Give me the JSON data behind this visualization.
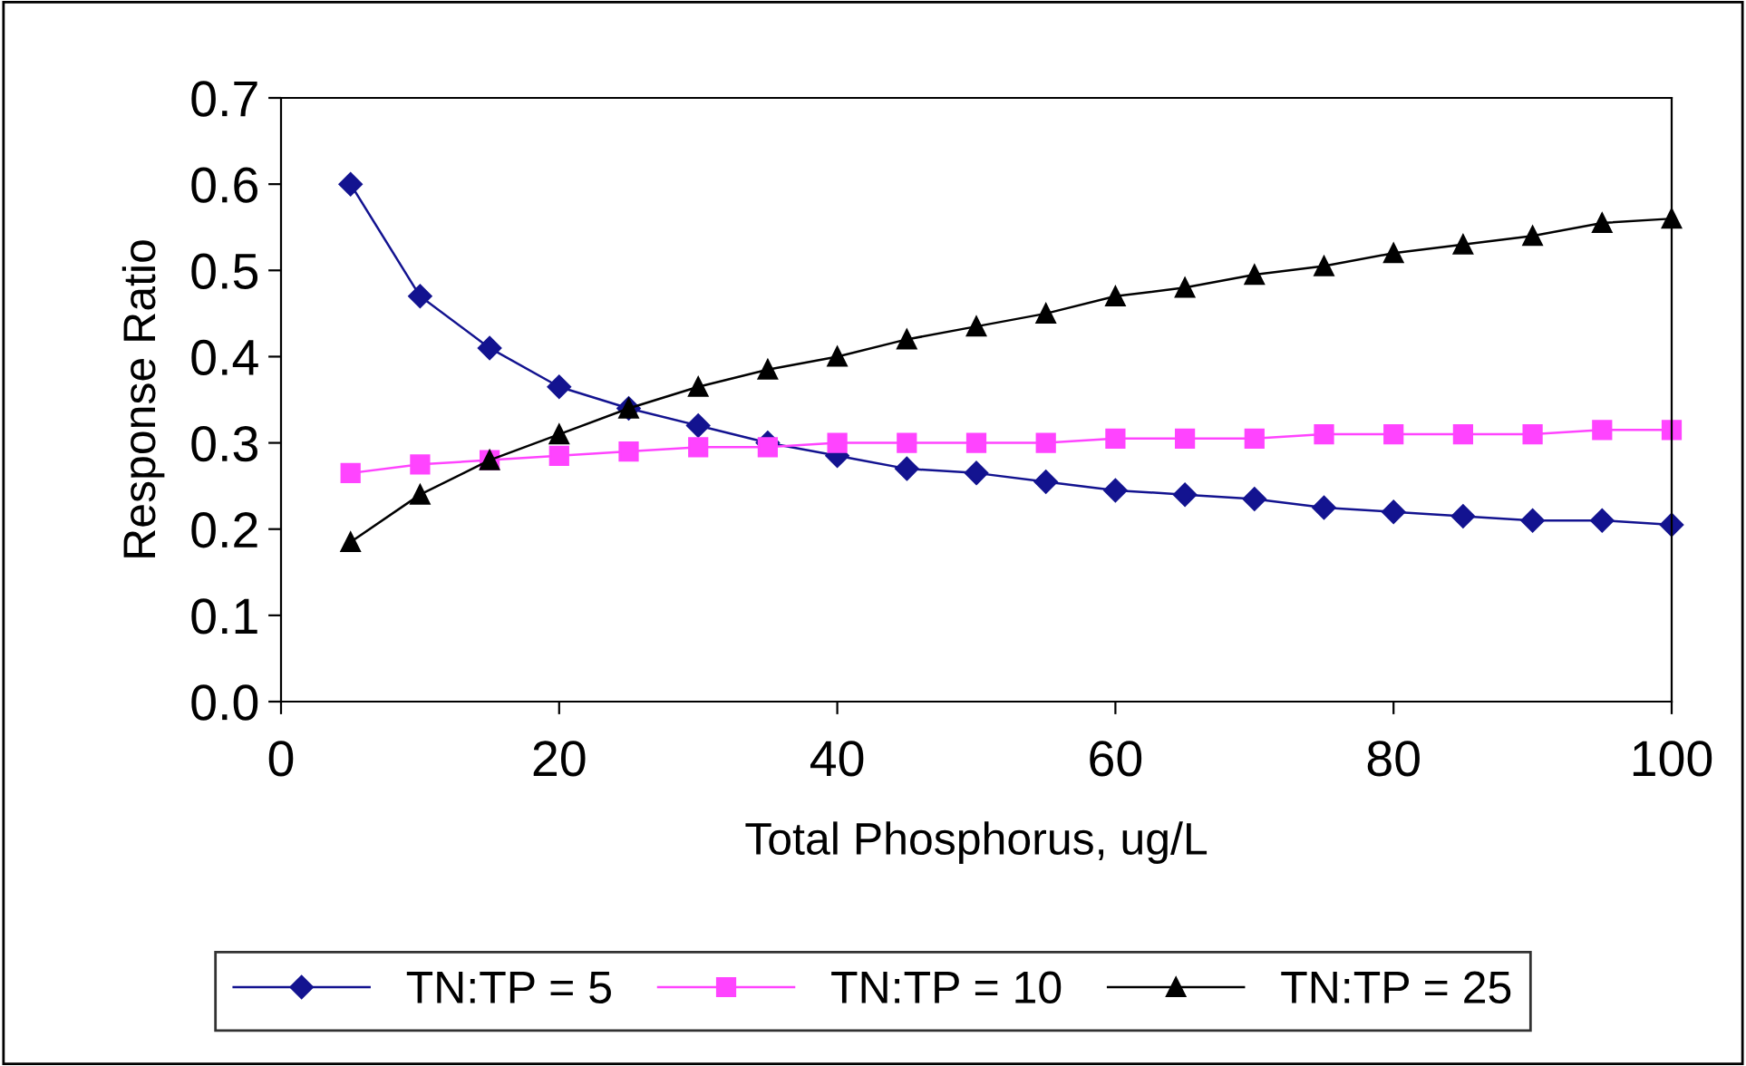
{
  "chart_data": {
    "type": "line",
    "xlabel": "Total Phosphorus, ug/L",
    "ylabel": "Response Ratio",
    "x": [
      5,
      10,
      15,
      20,
      25,
      30,
      35,
      40,
      45,
      50,
      55,
      60,
      65,
      70,
      75,
      80,
      85,
      90,
      95,
      100
    ],
    "series": [
      {
        "name": "TN:TP = 5",
        "color": "#131390",
        "marker": "diamond",
        "values": [
          0.6,
          0.47,
          0.41,
          0.365,
          0.34,
          0.32,
          0.3,
          0.285,
          0.27,
          0.265,
          0.255,
          0.245,
          0.24,
          0.235,
          0.225,
          0.22,
          0.215,
          0.21,
          0.21,
          0.205
        ]
      },
      {
        "name": "TN:TP = 10",
        "color": "#ff44ff",
        "marker": "square",
        "values": [
          0.265,
          0.275,
          0.28,
          0.285,
          0.29,
          0.295,
          0.295,
          0.3,
          0.3,
          0.3,
          0.3,
          0.305,
          0.305,
          0.305,
          0.31,
          0.31,
          0.31,
          0.31,
          0.315,
          0.315
        ]
      },
      {
        "name": "TN:TP = 25",
        "color": "#000000",
        "marker": "triangle",
        "values": [
          0.185,
          0.24,
          0.28,
          0.31,
          0.34,
          0.365,
          0.385,
          0.4,
          0.42,
          0.435,
          0.45,
          0.47,
          0.48,
          0.495,
          0.505,
          0.52,
          0.53,
          0.54,
          0.555,
          0.56
        ]
      }
    ],
    "xlim": [
      0,
      100
    ],
    "xticks": [
      0,
      20,
      40,
      60,
      80,
      100
    ],
    "ylim": [
      0,
      0.7
    ],
    "yticks": [
      {
        "value": 0,
        "label": "0.0"
      },
      {
        "value": 0.1,
        "label": "0.1"
      },
      {
        "value": 0.2,
        "label": "0.2"
      },
      {
        "value": 0.3,
        "label": "0.3"
      },
      {
        "value": 0.4,
        "label": "0.4"
      },
      {
        "value": 0.5,
        "label": "0.5"
      },
      {
        "value": 0.6,
        "label": "0.6"
      },
      {
        "value": 0.7,
        "label": "0.7"
      }
    ],
    "grid": false,
    "legend": "bottom",
    "line_style": "solid"
  }
}
